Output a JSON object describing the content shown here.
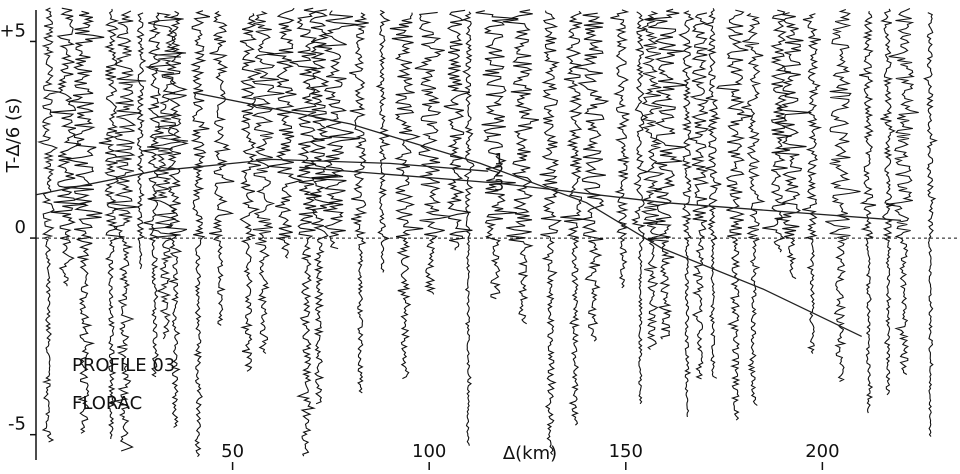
{
  "chart_data": {
    "type": "line",
    "x_label": "Δ(km)",
    "y_label": "T-Δ/6 (s)",
    "annotations": [
      "PROFILE 03",
      "FLORAC"
    ],
    "xlim": [
      0,
      235
    ],
    "ylim": [
      -6,
      5.8
    ],
    "xticks": [
      50,
      100,
      150,
      200
    ],
    "yticks": [
      {
        "value": 5,
        "label": "+5"
      },
      0,
      -5
    ],
    "series": [
      {
        "name": "1",
        "color": "#222",
        "x": [
          40,
          80,
          113,
          140,
          159,
          185,
          210
        ],
        "values": [
          3.7,
          2.9,
          1.9,
          0.9,
          -0.25,
          -1.3,
          -2.5
        ]
      },
      {
        "name": "2",
        "color": "#222",
        "x": [
          0,
          30,
          60,
          90,
          115
        ],
        "values": [
          1.1,
          1.7,
          2.0,
          1.9,
          1.7
        ]
      },
      {
        "name": "3",
        "color": "#222",
        "x": [
          67,
          117,
          160,
          220
        ],
        "values": [
          1.8,
          1.4,
          0.9,
          0.45
        ]
      }
    ]
  }
}
